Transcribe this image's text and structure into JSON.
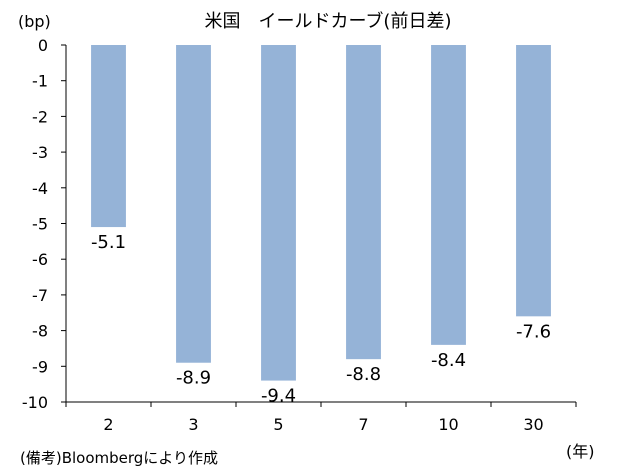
{
  "chart_data": {
    "type": "bar",
    "title": "米国　イールドカーブ(前日差)",
    "y_unit": "(bp)",
    "x_unit": "(年)",
    "categories": [
      "2",
      "3",
      "5",
      "7",
      "10",
      "30"
    ],
    "values": [
      -5.1,
      -8.9,
      -9.4,
      -8.8,
      -8.4,
      -7.6
    ],
    "data_labels": [
      "-5.1",
      "-8.9",
      "-9.4",
      "-8.8",
      "-8.4",
      "-7.6"
    ],
    "ylim": [
      -10,
      0
    ],
    "yticks": [
      0,
      -1,
      -2,
      -3,
      -4,
      -5,
      -6,
      -7,
      -8,
      -9,
      -10
    ],
    "grid": false,
    "legend": "none",
    "bar_color": "#95b3d7",
    "axis_color": "#000000"
  },
  "footnote": "(備考)Bloombergにより作成"
}
